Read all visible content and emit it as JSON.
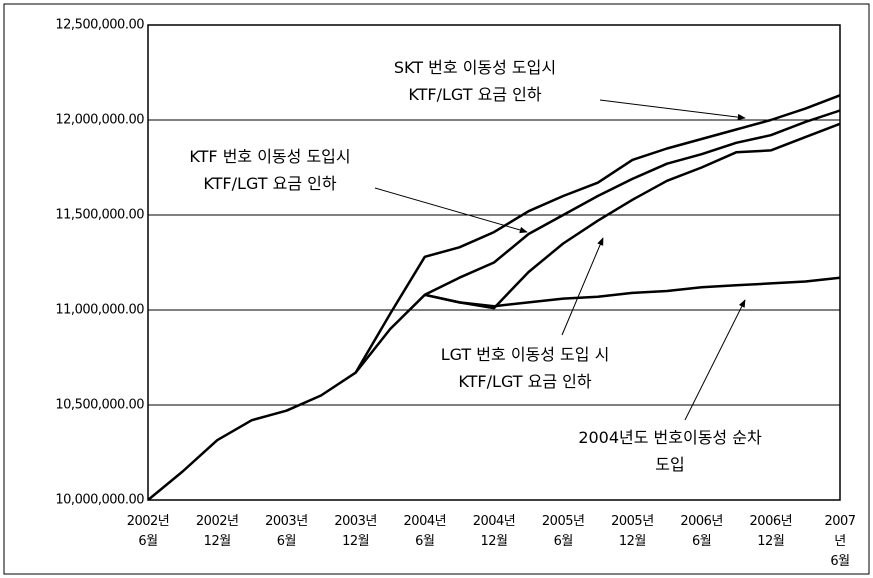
{
  "chart_data": {
    "type": "line",
    "categories": [
      "2002년\n6월",
      null,
      "2002년\n12월",
      null,
      "2003년\n6월",
      null,
      "2003년\n12월",
      null,
      "2004년\n6월",
      null,
      "2004년\n12월",
      null,
      "2005년\n6월",
      null,
      "2005년\n12월",
      null,
      "2006년\n6월",
      null,
      "2006년\n12월",
      null,
      "2007년\n6월"
    ],
    "series": [
      {
        "color": "#000000",
        "values": [
          10000000,
          10150000,
          10315000,
          10420000,
          10470000,
          10550000,
          10670000,
          10980000,
          11280000,
          11330000,
          11410000,
          11520000,
          11600000,
          11670000,
          11790000,
          11850000,
          11900000,
          11950000,
          12000000,
          12060000,
          12130000
        ]
      },
      {
        "color": "#000000",
        "values": [
          null,
          null,
          null,
          null,
          null,
          null,
          10670000,
          10900000,
          11080000,
          11170000,
          11250000,
          11400000,
          11500000,
          11600000,
          11690000,
          11770000,
          11820000,
          11880000,
          11920000,
          11990000,
          12050000
        ]
      },
      {
        "color": "#000000",
        "values": [
          null,
          null,
          null,
          null,
          null,
          null,
          null,
          null,
          11080000,
          11040000,
          11010000,
          11200000,
          11350000,
          11470000,
          11580000,
          11680000,
          11750000,
          11830000,
          11840000,
          11910000,
          11980000
        ]
      },
      {
        "color": "#000000",
        "values": [
          null,
          null,
          null,
          null,
          null,
          null,
          null,
          null,
          11080000,
          11040000,
          11020000,
          11040000,
          11060000,
          11070000,
          11090000,
          11100000,
          11120000,
          11130000,
          11140000,
          11150000,
          11170000
        ]
      }
    ],
    "ylim": [
      10000000,
      12500000
    ],
    "yticks": [
      {
        "value": 10000000,
        "label": "10,000,000.00"
      },
      {
        "value": 10500000,
        "label": "10,500,000.00"
      },
      {
        "value": 11000000,
        "label": "11,000,000.00"
      },
      {
        "value": 11500000,
        "label": "11,500,000.00"
      },
      {
        "value": 12000000,
        "label": "12,000,000.00"
      },
      {
        "value": 12500000,
        "label": "12,500,000.00"
      }
    ],
    "grid": true,
    "annotations": [
      "SKT 번호 이동성 도입시\nKTF/LGT 요금 인하",
      "KTF 번호 이동성 도입시\nKTF/LGT 요금 인하",
      "LGT 번호 이동성 도입 시\nKTF/LGT 요금 인하",
      "2004년도 번호이동성 순차 도입"
    ]
  }
}
